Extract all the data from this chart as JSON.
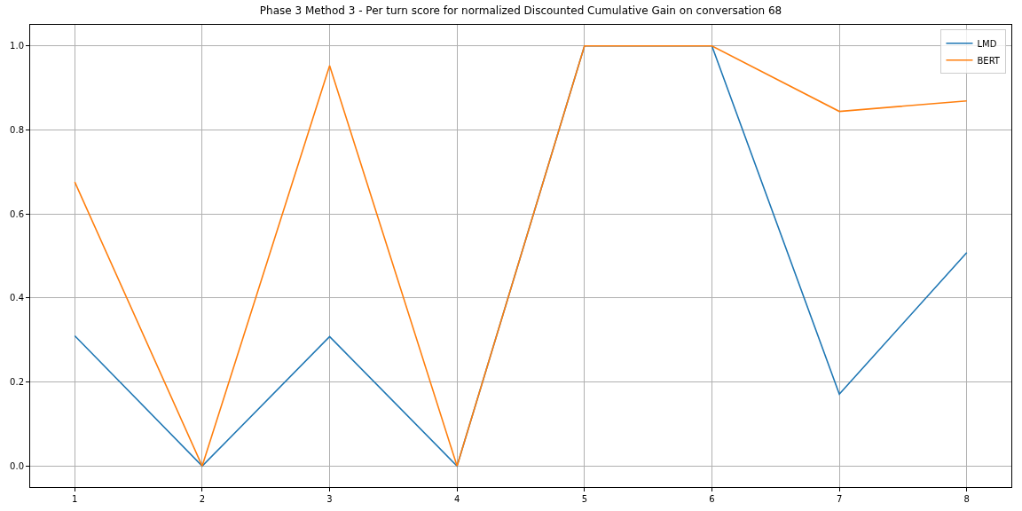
{
  "chart_data": {
    "type": "line",
    "title": "Phase 3 Method 3 - Per turn score for normalized Discounted Cumulative Gain on conversation 68",
    "x": [
      1,
      2,
      3,
      4,
      5,
      6,
      7,
      8
    ],
    "series": [
      {
        "name": "LMD",
        "color": "#1f77b4",
        "values": [
          0.31,
          0,
          0.308,
          0,
          1,
          1,
          0.171,
          0.508
        ]
      },
      {
        "name": "BERT",
        "color": "#ff7f0e",
        "values": [
          0.676,
          0,
          0.953,
          0,
          1,
          1,
          0.844,
          0.869
        ]
      }
    ],
    "xlim": [
      0.65,
      8.35
    ],
    "xticks": [
      1,
      2,
      3,
      4,
      5,
      6,
      7,
      8
    ],
    "ylim": [
      -0.05,
      1.05
    ],
    "yticks": [
      {
        "value": 0,
        "label": "0.0"
      },
      {
        "value": 0.2,
        "label": "0.2"
      },
      {
        "value": 0.4,
        "label": "0.4"
      },
      {
        "value": 0.6,
        "label": "0.6"
      },
      {
        "value": 0.8,
        "label": "0.8"
      },
      {
        "value": 1,
        "label": "1.0"
      }
    ],
    "grid": true,
    "legend": "top right",
    "marker": "none",
    "line_style": "solid"
  }
}
